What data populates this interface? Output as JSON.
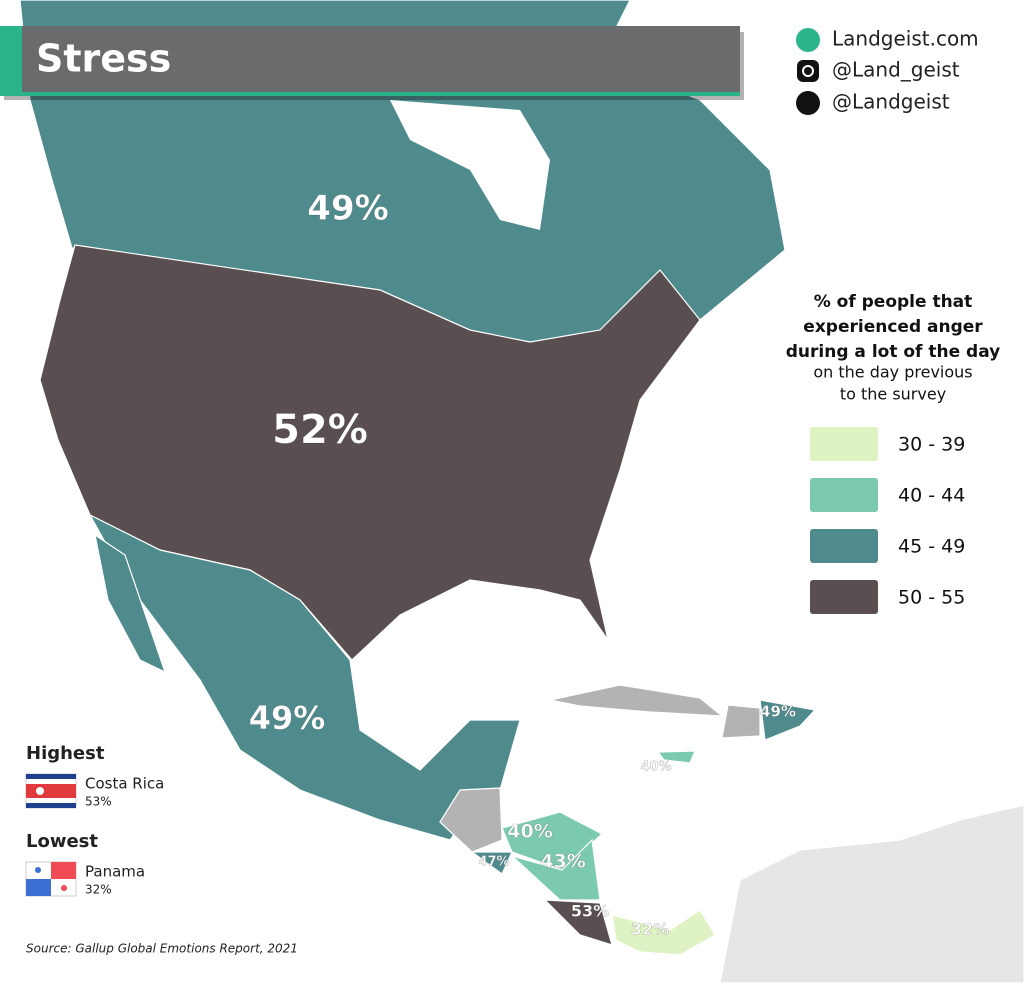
{
  "title": "Stress",
  "credits": [
    "Landgeist.com",
    "@Land_geist",
    "@Landgeist"
  ],
  "legend": {
    "title_lines": [
      "% of people that",
      "experienced anger",
      "during a lot of the day"
    ],
    "subtitle_lines": [
      "on the day previous",
      "to the survey"
    ],
    "items": [
      {
        "label": "30 - 39",
        "color": "#dff2c4"
      },
      {
        "label": "40 - 44",
        "color": "#7ccaad"
      },
      {
        "label": "45 - 49",
        "color": "#4f8b8d"
      },
      {
        "label": "50 - 55",
        "color": "#5a4f50"
      }
    ]
  },
  "map_labels": [
    "49%",
    "52%",
    "49%",
    "49%",
    "40%",
    "40%",
    "43%",
    "47%",
    "53%",
    "32%"
  ],
  "highest": {
    "heading": "Highest",
    "country": "Costa Rica",
    "value": "53%"
  },
  "lowest": {
    "heading": "Lowest",
    "country": "Panama",
    "value": "32%"
  },
  "source": "Source: Gallup Global Emotions Report, 2021"
}
